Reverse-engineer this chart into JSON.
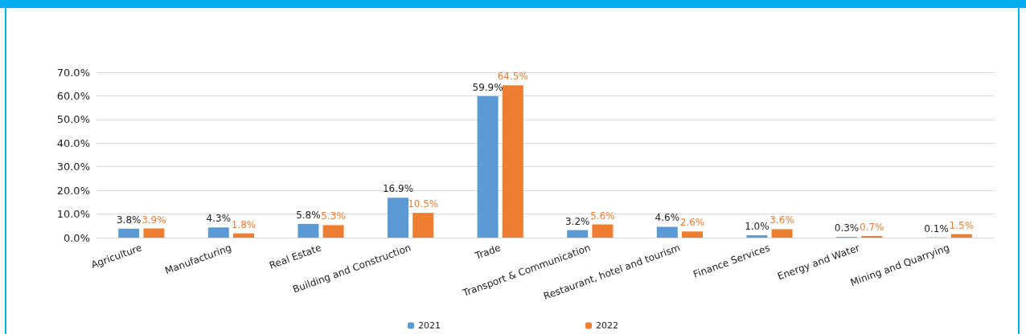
{
  "chart_data": {
    "type": "bar",
    "categories": [
      "Agriculture",
      "Manufacturing",
      "Real Estate",
      "Building and Construction",
      "Trade",
      "Transport & Communication",
      "Restaurant, hotel and tourism",
      "Finance Services",
      "Energy and Water",
      "Mining and Quarrying"
    ],
    "series": [
      {
        "name": "2021",
        "color": "#5b9bd5",
        "values": [
          3.8,
          4.3,
          5.8,
          16.9,
          59.9,
          3.2,
          4.6,
          1.0,
          0.3,
          0.1
        ],
        "value_labels": [
          "3.8%",
          "4.3%",
          "5.8%",
          "16.9%",
          "59.9%",
          "3.2%",
          "4.6%",
          "1.0%",
          "0.3%",
          "0.1%"
        ]
      },
      {
        "name": "2022",
        "color": "#ed7d31",
        "values": [
          3.9,
          1.8,
          5.3,
          10.5,
          64.5,
          5.6,
          2.6,
          3.6,
          0.7,
          1.5
        ],
        "value_labels": [
          "3.9%",
          "1.8%",
          "5.3%",
          "10.5%",
          "64.5%",
          "5.6%",
          "2.6%",
          "3.6%",
          "0.7%",
          "1.5%"
        ]
      }
    ],
    "ylim": [
      0,
      70
    ],
    "yticks": [
      {
        "value": 0,
        "label": "0.0%"
      },
      {
        "value": 10,
        "label": "10.0%"
      },
      {
        "value": 20,
        "label": "20.0%"
      },
      {
        "value": 30,
        "label": "30.0%"
      },
      {
        "value": 40,
        "label": "40.0%"
      },
      {
        "value": 50,
        "label": "50.0%"
      },
      {
        "value": 60,
        "label": "60.0%"
      },
      {
        "value": 70,
        "label": "70.0%"
      }
    ],
    "grid": "y",
    "legend": "bottom"
  }
}
